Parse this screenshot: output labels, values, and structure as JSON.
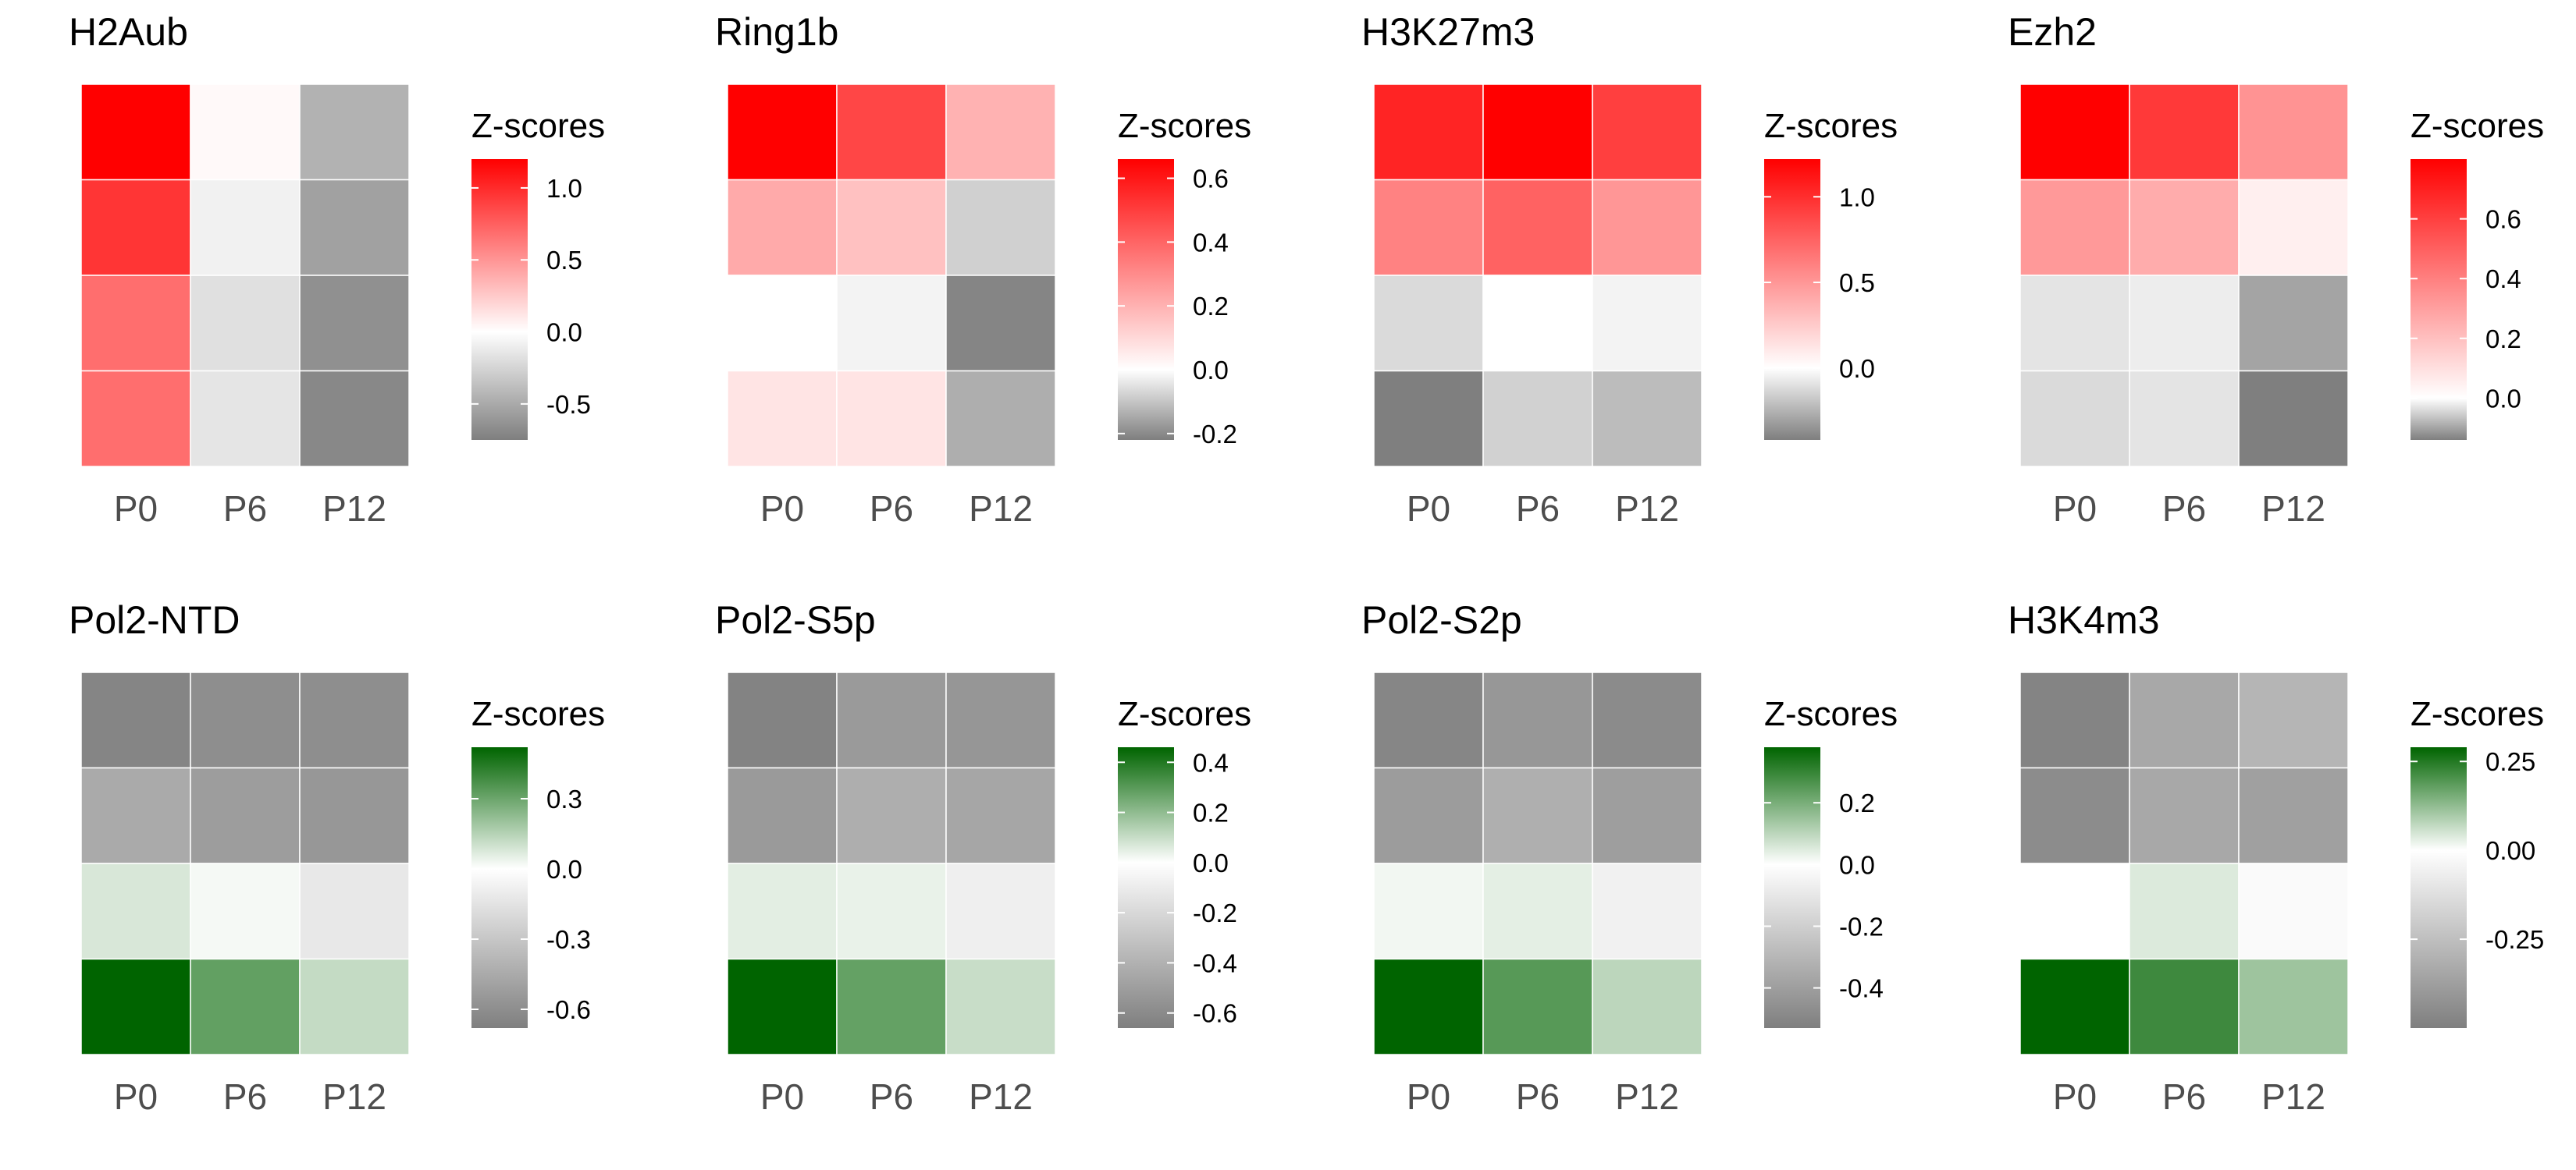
{
  "chart_data": [
    {
      "type": "heatmap",
      "title": "H2Aub",
      "categories": [
        "P0",
        "P6",
        "P12"
      ],
      "legend_title": "Z-scores",
      "palette": "red",
      "color_range": [
        -0.75,
        1.2
      ],
      "legend_ticks": [
        1.0,
        0.5,
        0.0,
        -0.5
      ],
      "legend_tick_labels": [
        "1.0",
        "0.5",
        "0.0",
        "-0.5"
      ],
      "values": [
        [
          1.2,
          0.03,
          -0.45
        ],
        [
          0.95,
          -0.08,
          -0.55
        ],
        [
          0.68,
          -0.18,
          -0.65
        ],
        [
          0.68,
          -0.15,
          -0.7
        ]
      ]
    },
    {
      "type": "heatmap",
      "title": "Ring1b",
      "categories": [
        "P0",
        "P6",
        "P12"
      ],
      "legend_title": "Z-scores",
      "palette": "red",
      "color_range": [
        -0.22,
        0.66
      ],
      "legend_ticks": [
        0.6,
        0.4,
        0.2,
        0.0,
        -0.2
      ],
      "legend_tick_labels": [
        "0.6",
        "0.4",
        "0.2",
        "0.0",
        "-0.2"
      ],
      "values": [
        [
          0.66,
          0.48,
          0.2
        ],
        [
          0.22,
          0.16,
          -0.08
        ],
        [
          0.0,
          -0.02,
          -0.21
        ],
        [
          0.07,
          0.07,
          -0.14
        ]
      ]
    },
    {
      "type": "heatmap",
      "title": "H3K27m3",
      "categories": [
        "P0",
        "P6",
        "P12"
      ],
      "legend_title": "Z-scores",
      "palette": "red",
      "color_range": [
        -0.42,
        1.22
      ],
      "legend_ticks": [
        1.0,
        0.5,
        0.0
      ],
      "legend_tick_labels": [
        "1.0",
        "0.5",
        "0.0"
      ],
      "values": [
        [
          1.05,
          1.22,
          0.92
        ],
        [
          0.6,
          0.75,
          0.5
        ],
        [
          -0.12,
          0.0,
          -0.04
        ],
        [
          -0.42,
          -0.15,
          -0.22
        ]
      ]
    },
    {
      "type": "heatmap",
      "title": "Ezh2",
      "categories": [
        "P0",
        "P6",
        "P12"
      ],
      "legend_title": "Z-scores",
      "palette": "red",
      "color_range": [
        -0.14,
        0.8
      ],
      "legend_ticks": [
        0.6,
        0.4,
        0.2,
        0.0
      ],
      "legend_tick_labels": [
        "0.6",
        "0.4",
        "0.2",
        "0.0"
      ],
      "values": [
        [
          0.8,
          0.62,
          0.34
        ],
        [
          0.32,
          0.26,
          0.05
        ],
        [
          -0.03,
          -0.02,
          -0.1
        ],
        [
          -0.04,
          -0.03,
          -0.14
        ]
      ]
    },
    {
      "type": "heatmap",
      "title": "Pol2-NTD",
      "categories": [
        "P0",
        "P6",
        "P12"
      ],
      "legend_title": "Z-scores",
      "palette": "green",
      "color_range": [
        -0.68,
        0.52
      ],
      "legend_ticks": [
        0.3,
        0.0,
        -0.3,
        -0.6
      ],
      "legend_tick_labels": [
        "0.3",
        "0.0",
        "-0.3",
        "-0.6"
      ],
      "values": [
        [
          -0.65,
          -0.6,
          -0.6
        ],
        [
          -0.45,
          -0.52,
          -0.55
        ],
        [
          0.08,
          0.02,
          -0.12
        ],
        [
          0.52,
          0.32,
          0.12
        ]
      ]
    },
    {
      "type": "heatmap",
      "title": "Pol2-S5p",
      "categories": [
        "P0",
        "P6",
        "P12"
      ],
      "legend_title": "Z-scores",
      "palette": "green",
      "color_range": [
        -0.66,
        0.46
      ],
      "legend_ticks": [
        0.4,
        0.2,
        0.0,
        -0.2,
        -0.4,
        -0.6
      ],
      "legend_tick_labels": [
        "0.4",
        "0.2",
        "0.0",
        "-0.2",
        "-0.4",
        "-0.6"
      ],
      "values": [
        [
          -0.64,
          -0.52,
          -0.54
        ],
        [
          -0.52,
          -0.42,
          -0.46
        ],
        [
          0.05,
          0.04,
          -0.08
        ],
        [
          0.46,
          0.28,
          0.1
        ]
      ]
    },
    {
      "type": "heatmap",
      "title": "Pol2-S2p",
      "categories": [
        "P0",
        "P6",
        "P12"
      ],
      "legend_title": "Z-scores",
      "palette": "green",
      "color_range": [
        -0.53,
        0.38
      ],
      "legend_ticks": [
        0.2,
        0.0,
        -0.2,
        -0.4
      ],
      "legend_tick_labels": [
        "0.2",
        "0.0",
        "-0.2",
        "-0.4"
      ],
      "values": [
        [
          -0.5,
          -0.43,
          -0.48
        ],
        [
          -0.41,
          -0.33,
          -0.4
        ],
        [
          0.02,
          0.04,
          -0.06
        ],
        [
          0.38,
          0.25,
          0.1
        ]
      ]
    },
    {
      "type": "heatmap",
      "title": "H3K4m3",
      "categories": [
        "P0",
        "P6",
        "P12"
      ],
      "legend_title": "Z-scores",
      "palette": "green",
      "color_range": [
        -0.5,
        0.29
      ],
      "legend_ticks": [
        0.25,
        0.0,
        -0.25
      ],
      "legend_tick_labels": [
        "0.25",
        "0.00",
        "-0.25"
      ],
      "values": [
        [
          -0.48,
          -0.34,
          -0.29
        ],
        [
          -0.45,
          -0.34,
          -0.37
        ],
        [
          0.0,
          0.04,
          -0.02
        ],
        [
          0.29,
          0.22,
          0.11
        ]
      ]
    }
  ],
  "colors": {
    "high_red": "#ff0000",
    "high_green": "#006400",
    "mid": "#ffffff",
    "low": "#7f7f7f",
    "tick_text": "#4d4d4d"
  }
}
